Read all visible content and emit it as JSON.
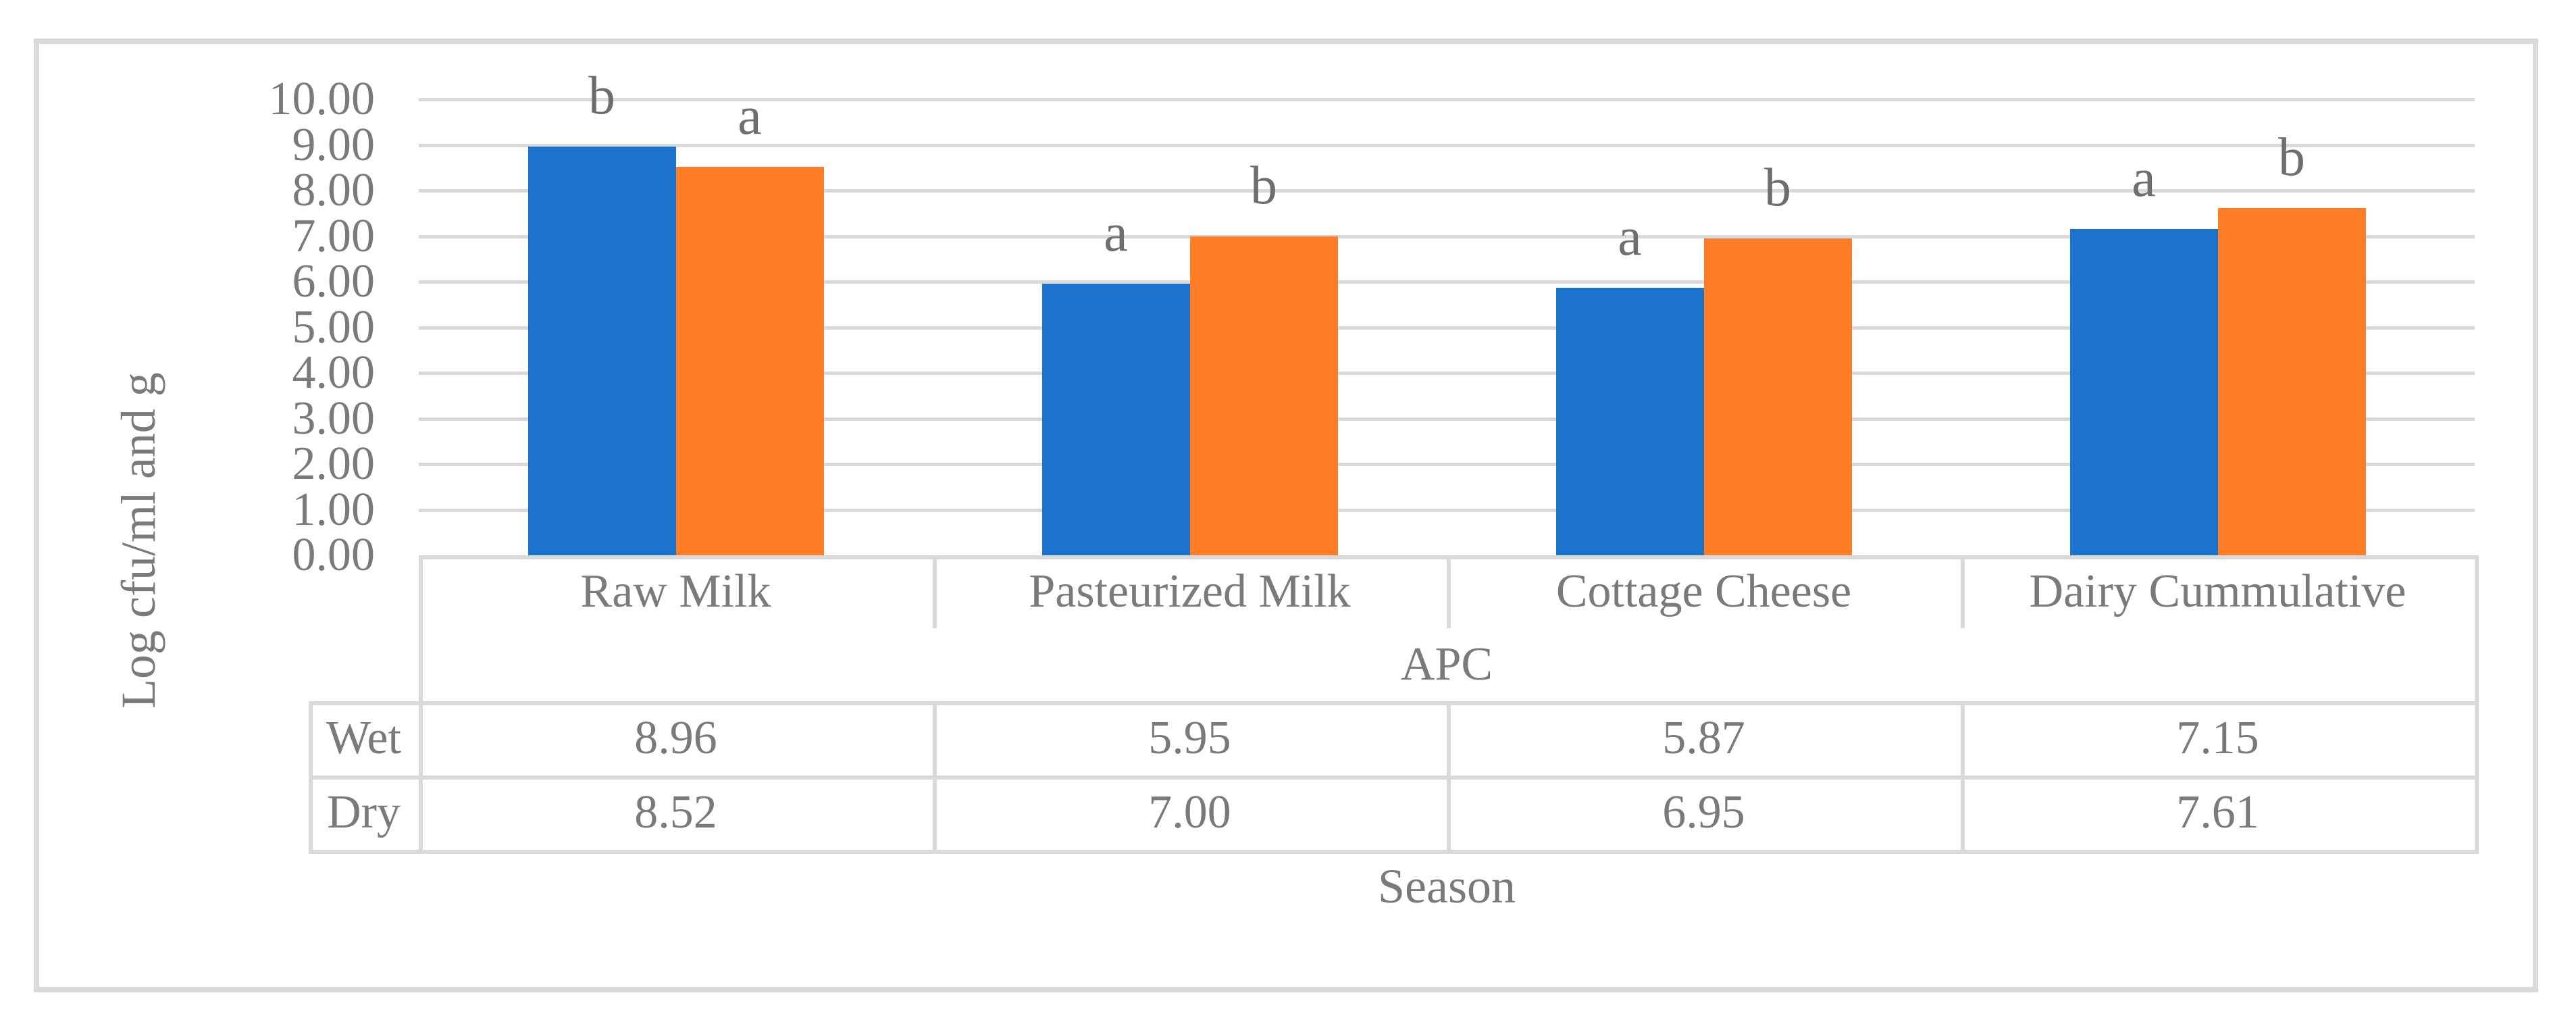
{
  "figure": {
    "background": "#FFFFFF",
    "frame_color": "#D9D9D9"
  },
  "chart_data": {
    "type": "bar",
    "title": "",
    "ylabel": "Log cfu/ml and g",
    "xlabel": "Season",
    "group_label": "APC",
    "categories": [
      "Raw Milk",
      "Pasteurized Milk",
      "Cottage Cheese",
      "Dairy Cummulative"
    ],
    "ylim": [
      0,
      10
    ],
    "ytick_step": 1,
    "ytick_labels": [
      "0.00",
      "1.00",
      "2.00",
      "3.00",
      "4.00",
      "5.00",
      "6.00",
      "7.00",
      "8.00",
      "9.00",
      "10.00"
    ],
    "grid": true,
    "legend_position": "data-table-row-headers",
    "series": [
      {
        "name": "Wet",
        "color": "#1B73CB",
        "values": [
          8.96,
          5.95,
          5.87,
          7.15
        ],
        "value_labels": [
          "8.96",
          "5.95",
          "5.87",
          "7.15"
        ],
        "sig_letters": [
          "b",
          "a",
          "a",
          "a"
        ]
      },
      {
        "name": "Dry",
        "color": "#FF7D26",
        "values": [
          8.52,
          7.0,
          6.95,
          7.61
        ],
        "value_labels": [
          "8.52",
          "7.00",
          "6.95",
          "7.61"
        ],
        "sig_letters": [
          "a",
          "b",
          "b",
          "b"
        ]
      }
    ],
    "colors": {
      "gridline": "#D9D9D9",
      "table_border": "#D9D9D9",
      "text": "#7A7A7A"
    }
  }
}
